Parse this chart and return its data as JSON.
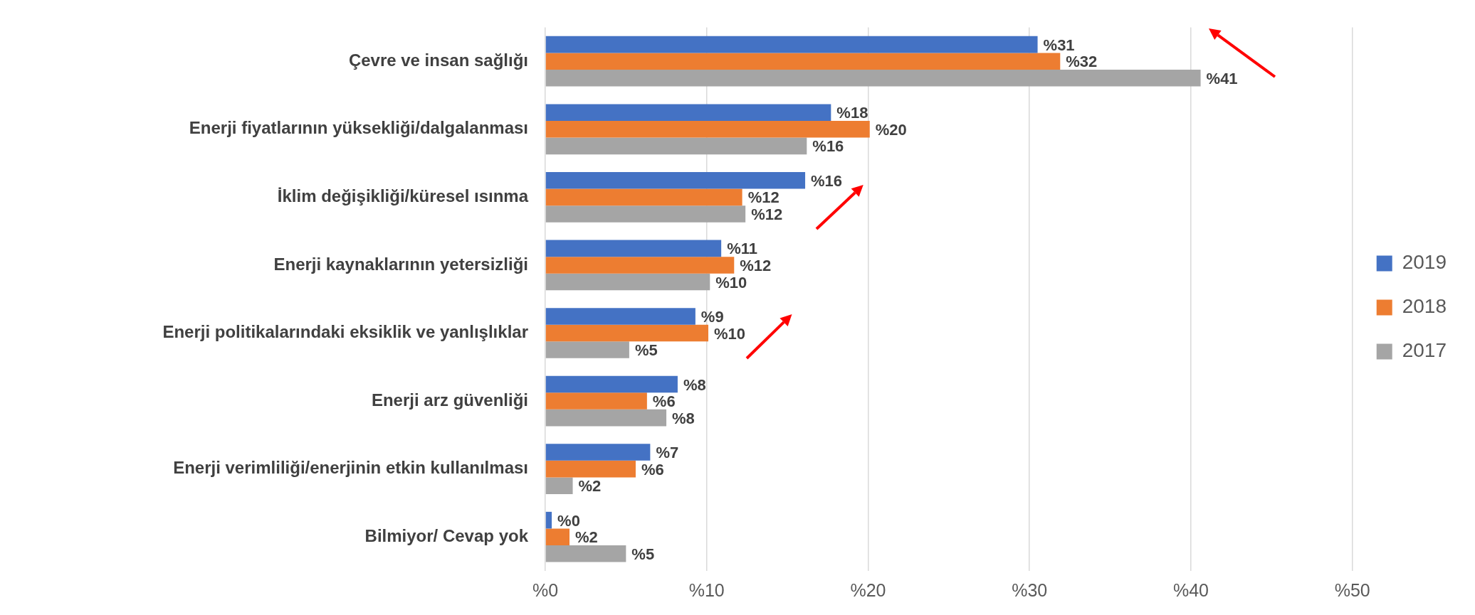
{
  "chart_data": {
    "type": "bar",
    "orientation": "horizontal",
    "categories": [
      "Çevre ve insan sağlığı",
      "Enerji fiyatlarının yüksekliği/dalgalanması",
      "İklim değişikliği/küresel ısınma",
      "Enerji kaynaklarının yetersizliği",
      "Enerji politikalarındaki eksiklik ve yanlışlıklar",
      "Enerji arz güvenliği",
      "Enerji verimliliği/enerjinin etkin kullanılması",
      "Bilmiyor/ Cevap yok"
    ],
    "series": [
      {
        "name": "2019",
        "color": "#4472c4",
        "values": [
          30.5,
          17.7,
          16.1,
          10.9,
          9.3,
          8.2,
          6.5,
          0.4
        ],
        "value_labels": [
          "%31",
          "%18",
          "%16",
          "%11",
          "%9",
          "%8",
          "%7",
          "%0"
        ]
      },
      {
        "name": "2018",
        "color": "#ed7d31",
        "values": [
          31.9,
          20.1,
          12.2,
          11.7,
          10.1,
          6.3,
          5.6,
          1.5
        ],
        "value_labels": [
          "%32",
          "%20",
          "%12",
          "%12",
          "%10",
          "%6",
          "%6",
          "%2"
        ]
      },
      {
        "name": "2017",
        "color": "#a5a5a5",
        "values": [
          40.6,
          16.2,
          12.4,
          10.2,
          5.2,
          7.5,
          1.7,
          5.0
        ],
        "value_labels": [
          "%41",
          "%16",
          "%12",
          "%10",
          "%5",
          "%8",
          "%2",
          "%5"
        ]
      }
    ],
    "xlim": [
      0,
      50
    ],
    "xticks": [
      {
        "value": 0,
        "label": "%0"
      },
      {
        "value": 10,
        "label": "%10"
      },
      {
        "value": 20,
        "label": "%20"
      },
      {
        "value": 30,
        "label": "%30"
      },
      {
        "value": 40,
        "label": "%40"
      },
      {
        "value": 50,
        "label": "%50"
      }
    ],
    "grid": "x",
    "legend": "right"
  }
}
